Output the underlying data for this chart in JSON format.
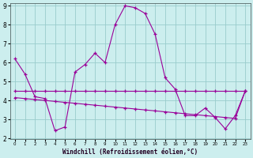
{
  "title": "",
  "xlabel": "Windchill (Refroidissement éolien,°C)",
  "hours": [
    0,
    1,
    2,
    3,
    4,
    5,
    6,
    7,
    8,
    9,
    10,
    11,
    12,
    13,
    14,
    15,
    16,
    17,
    18,
    19,
    20,
    21,
    22,
    23
  ],
  "series1": [
    6.2,
    5.4,
    4.2,
    4.1,
    2.4,
    2.6,
    5.5,
    5.9,
    6.5,
    6.0,
    8.0,
    9.0,
    8.9,
    8.6,
    7.5,
    5.2,
    4.6,
    3.2,
    3.2,
    3.6,
    3.1,
    2.5,
    3.2,
    4.5
  ],
  "series2": [
    4.15,
    4.1,
    4.05,
    4.0,
    3.95,
    3.9,
    3.85,
    3.8,
    3.75,
    3.7,
    3.65,
    3.6,
    3.55,
    3.5,
    3.45,
    3.4,
    3.35,
    3.3,
    3.25,
    3.2,
    3.15,
    3.1,
    3.05,
    4.5
  ],
  "series3": [
    4.5,
    4.5,
    4.5,
    4.5,
    4.5,
    4.5,
    4.5,
    4.5,
    4.5,
    4.5,
    4.5,
    4.5,
    4.5,
    4.5,
    4.5,
    4.5,
    4.5,
    4.5,
    4.5,
    4.5,
    4.5,
    4.5,
    4.5,
    4.5
  ],
  "line_color": "#990099",
  "bg_color": "#cceeee",
  "grid_color": "#99cccc",
  "ylim_min": 2,
  "ylim_max": 9,
  "xlim_min": 0,
  "xlim_max": 23,
  "yticks": [
    2,
    3,
    4,
    5,
    6,
    7,
    8,
    9
  ],
  "xticks": [
    0,
    1,
    2,
    3,
    4,
    5,
    6,
    7,
    8,
    9,
    10,
    11,
    12,
    13,
    14,
    15,
    16,
    17,
    18,
    19,
    20,
    21,
    22,
    23
  ],
  "xlabel_color": "#220022",
  "tick_color": "#000000"
}
